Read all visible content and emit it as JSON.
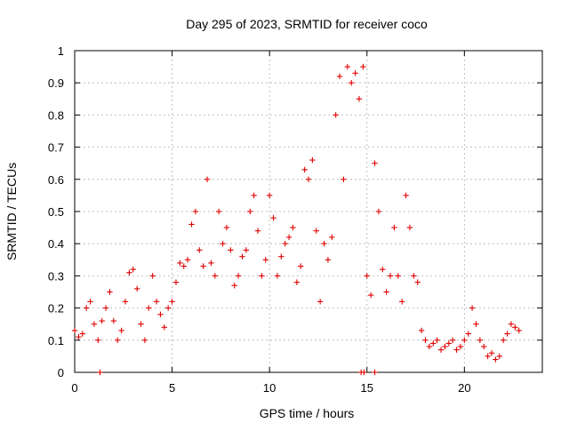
{
  "chart_data": {
    "type": "scatter",
    "title": "Day 295 of 2023, SRMTID for receiver coco",
    "xlabel": "GPS time / hours",
    "ylabel": "SRMTID / TECUs",
    "xlim": [
      0,
      24
    ],
    "ylim": [
      0,
      1
    ],
    "x_ticks": [
      "0",
      "5",
      "10",
      "15",
      "20"
    ],
    "y_ticks": [
      "0",
      "0.1",
      "0.2",
      "0.3",
      "0.4",
      "0.5",
      "0.6",
      "0.7",
      "0.8",
      "0.9",
      "1"
    ],
    "grid": true,
    "marker": "+",
    "color": "#e00000",
    "series": [
      {
        "name": "SRMTID",
        "x": [
          0.0,
          0.2,
          0.4,
          0.6,
          0.8,
          1.0,
          1.2,
          1.4,
          1.6,
          1.8,
          2.0,
          2.2,
          2.4,
          2.6,
          2.8,
          3.0,
          3.2,
          3.4,
          3.6,
          3.8,
          4.0,
          4.2,
          4.4,
          4.6,
          4.8,
          5.0,
          5.2,
          5.4,
          5.6,
          5.8,
          6.0,
          6.2,
          6.4,
          6.6,
          6.8,
          7.0,
          7.2,
          7.4,
          7.6,
          7.8,
          8.0,
          8.2,
          8.4,
          8.6,
          8.8,
          9.0,
          9.2,
          9.4,
          9.6,
          9.8,
          10.0,
          10.2,
          10.4,
          10.6,
          10.8,
          11.0,
          11.2,
          11.4,
          11.6,
          11.8,
          12.0,
          12.2,
          12.4,
          12.6,
          12.8,
          13.0,
          13.2,
          13.4,
          13.6,
          13.8,
          14.0,
          14.2,
          14.4,
          14.6,
          14.8,
          15.0,
          15.2,
          15.4,
          15.6,
          15.8,
          16.0,
          16.2,
          16.4,
          16.6,
          16.8,
          17.0,
          17.2,
          17.4,
          17.6,
          17.8,
          18.0,
          18.2,
          18.4,
          18.6,
          18.8,
          19.0,
          19.2,
          19.4,
          19.6,
          19.8,
          20.0,
          20.2,
          20.4,
          20.6,
          20.8,
          21.0,
          21.2,
          21.4,
          21.6,
          21.8,
          22.0,
          22.2,
          22.4,
          22.6,
          22.8,
          1.3,
          14.7,
          14.85,
          15.4
        ],
        "y": [
          0.13,
          0.11,
          0.12,
          0.2,
          0.22,
          0.15,
          0.1,
          0.16,
          0.2,
          0.25,
          0.16,
          0.1,
          0.13,
          0.22,
          0.31,
          0.32,
          0.26,
          0.15,
          0.1,
          0.2,
          0.3,
          0.22,
          0.18,
          0.14,
          0.2,
          0.22,
          0.28,
          0.34,
          0.33,
          0.35,
          0.46,
          0.5,
          0.38,
          0.33,
          0.6,
          0.34,
          0.3,
          0.5,
          0.4,
          0.45,
          0.38,
          0.27,
          0.3,
          0.36,
          0.38,
          0.5,
          0.55,
          0.44,
          0.3,
          0.35,
          0.55,
          0.48,
          0.3,
          0.36,
          0.4,
          0.42,
          0.45,
          0.28,
          0.33,
          0.63,
          0.6,
          0.66,
          0.44,
          0.22,
          0.4,
          0.35,
          0.42,
          0.8,
          0.92,
          0.6,
          0.95,
          0.9,
          0.93,
          0.85,
          0.95,
          0.3,
          0.24,
          0.65,
          0.5,
          0.32,
          0.25,
          0.3,
          0.45,
          0.3,
          0.22,
          0.55,
          0.45,
          0.3,
          0.28,
          0.13,
          0.1,
          0.08,
          0.09,
          0.1,
          0.07,
          0.08,
          0.09,
          0.1,
          0.07,
          0.08,
          0.1,
          0.12,
          0.2,
          0.15,
          0.1,
          0.08,
          0.05,
          0.06,
          0.04,
          0.05,
          0.1,
          0.12,
          0.15,
          0.14,
          0.13,
          0.0,
          0.0,
          0.0,
          0.0
        ]
      }
    ]
  }
}
